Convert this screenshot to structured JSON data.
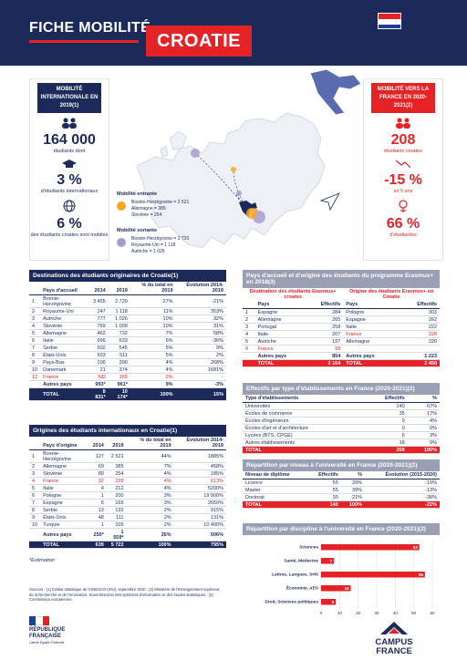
{
  "header": {
    "title": "FICHE MOBILITÉ",
    "country": "CROATIE",
    "date": "Octobre 2021",
    "flag_colors": [
      "#e52225",
      "#ffffff",
      "#1c3f94"
    ]
  },
  "left_panel": {
    "badge": "MOBILITÉ INTERNATIONALE EN 2019(1)",
    "stat1_value": "164 000",
    "stat1_label": "étudiants dont",
    "stat2_value": "3 %",
    "stat2_label": "d'étudiants internationaux",
    "stat3_value": "6 %",
    "stat3_label": "des étudiants croates sont mobiles"
  },
  "right_panel": {
    "badge": "MOBILITÉ VERS LA FRANCE EN 2020-2021(2)",
    "stat1_value": "208",
    "stat1_label": "étudiants croates",
    "stat2_value": "-15 %",
    "stat2_label": "en 5 ans",
    "stat3_value": "66 %",
    "stat3_label": "d'étudiantes"
  },
  "legend": {
    "incoming_title": "Mobilité entrante",
    "incoming_items": [
      "Bosnie-Herzégovine = 2 521",
      "Allemagne = 385",
      "Slovénie = 254"
    ],
    "outgoing_title": "Mobilité sortante",
    "outgoing_items": [
      "Bosnie-Herzégovine = 2 720",
      "Royaume-Uni = 1 118",
      "Autriche = 1 026"
    ],
    "incoming_color": "#f6a623",
    "outgoing_color": "#a89bd0"
  },
  "table1": {
    "title": "Destinations des étudiants originaires de Croatie(1)",
    "headers": [
      "",
      "Pays d'accueil",
      "2014",
      "2019",
      "% du total en 2019",
      "Évolution 2014-2019"
    ],
    "rows": [
      [
        "1",
        "Bosnie-Herzégovine",
        "3 455",
        "2 720",
        "27%",
        "-21%"
      ],
      [
        "2",
        "Royaume-Uni",
        "247",
        "1 118",
        "11%",
        "353%"
      ],
      [
        "3",
        "Autriche",
        "777",
        "1 026",
        "10%",
        "32%"
      ],
      [
        "4",
        "Slovénie",
        "769",
        "1 009",
        "10%",
        "31%"
      ],
      [
        "5",
        "Allemagne",
        "462",
        "732",
        "7%",
        "58%"
      ],
      [
        "6",
        "Italie",
        "996",
        "633",
        "6%",
        "-36%"
      ],
      [
        "7",
        "Serbie",
        "502",
        "545",
        "5%",
        "9%"
      ],
      [
        "8",
        "États-Unis",
        "503",
        "511",
        "5%",
        "2%"
      ],
      [
        "9",
        "Pays-Bas",
        "106",
        "390",
        "4%",
        "268%"
      ],
      [
        "10",
        "Danemark",
        "21",
        "374",
        "4%",
        "1681%"
      ],
      [
        "12",
        "France",
        "ND",
        "155",
        "2%",
        "-"
      ]
    ],
    "other": [
      "",
      "Autres pays",
      "993*",
      "961*",
      "9%",
      "-3%"
    ],
    "total": [
      "",
      "TOTAL",
      "8 831*",
      "10 174*",
      "100%",
      "15%"
    ]
  },
  "table2": {
    "title": "Origines des étudiants internationaux en Croatie(1)",
    "headers": [
      "",
      "Pays d'origine",
      "2014",
      "2019",
      "% du total en 2019",
      "Évolution 2014-2019"
    ],
    "rows": [
      [
        "1",
        "Bosnie-Herzégovine",
        "127",
        "2 521",
        "44%",
        "1885%"
      ],
      [
        "2",
        "Allemagne",
        "69",
        "385",
        "7%",
        "458%"
      ],
      [
        "3",
        "Slovénie",
        "89",
        "254",
        "4%",
        "185%"
      ],
      [
        "4",
        "France",
        "32",
        "228",
        "4%",
        "613%"
      ],
      [
        "5",
        "Italie",
        "4",
        "212",
        "4%",
        "5200%"
      ],
      [
        "6",
        "Pologne",
        "1",
        "200",
        "3%",
        "19 900%"
      ],
      [
        "7",
        "Espagne",
        "6",
        "165",
        "3%",
        "2650%"
      ],
      [
        "8",
        "Serbie",
        "13",
        "132",
        "2%",
        "915%"
      ],
      [
        "9",
        "États-Unis",
        "48",
        "111",
        "2%",
        "131%"
      ],
      [
        "10",
        "Turquie",
        "1",
        "105",
        "2%",
        "10 400%"
      ]
    ],
    "other": [
      "",
      "Autres pays",
      "250*",
      "1 559*",
      "26%",
      "506%"
    ],
    "total": [
      "",
      "TOTAL",
      "639",
      "5 722",
      "100%",
      "795%"
    ]
  },
  "table3": {
    "title": "Pays d'accueil et d'origine des étudiants du programme Erasmus+ en 2018(3)",
    "left_heading": "Destination des étudiants Erasmus+ croates",
    "right_heading": "Origine des étudiants Erasmus+ en Croatie",
    "headers": [
      "",
      "Pays",
      "Effectifs",
      "Pays",
      "Effectifs"
    ],
    "rows": [
      [
        "1",
        "Espagne",
        "284",
        "Pologne",
        "303"
      ],
      [
        "2",
        "Allemagne",
        "265",
        "Espagne",
        "262"
      ],
      [
        "3",
        "Portugal",
        "258",
        "Italie",
        "222"
      ],
      [
        "4",
        "Italie",
        "207",
        "France",
        "220"
      ],
      [
        "5",
        "Autriche",
        "197",
        "Allemagne",
        "220"
      ],
      [
        "9",
        "France",
        "99",
        "",
        ""
      ]
    ],
    "other": [
      "",
      "Autres pays",
      "854",
      "Autres pays",
      "1 223"
    ],
    "total": [
      "",
      "TOTAL",
      "2 164",
      "TOTAL",
      "2 450"
    ]
  },
  "table4": {
    "title": "Effectifs par type d'établissements en France (2020-2021)(2)",
    "headers": [
      "Type d'établissements",
      "Effectifs",
      "%"
    ],
    "rows": [
      [
        "Universités",
        "140",
        "67%"
      ],
      [
        "Écoles de commerce",
        "35",
        "17%"
      ],
      [
        "Écoles d'ingénieurs",
        "9",
        "4%"
      ],
      [
        "Écoles d'art et d'architecture",
        "0",
        "0%"
      ],
      [
        "Lycées (BTS, CPGE)",
        "6",
        "3%"
      ],
      [
        "Autres établissements",
        "18",
        "9%"
      ]
    ],
    "total": [
      "TOTAL",
      "208",
      "100%"
    ]
  },
  "table5": {
    "title": "Répartition par niveau à l'université en France (2020-2021)(2)",
    "headers": [
      "Niveau de diplôme",
      "Effectifs",
      "%",
      "Évolution (2015-2020)"
    ],
    "rows": [
      [
        "Licence",
        "55",
        "39%",
        "-19%"
      ],
      [
        "Master",
        "55",
        "39%",
        "-13%"
      ],
      [
        "Doctorat",
        "30",
        "21%",
        "-38%"
      ]
    ],
    "total": [
      "TOTAL",
      "140",
      "100%",
      "-22%"
    ]
  },
  "chart_data": {
    "type": "bar",
    "orientation": "horizontal",
    "title": "Répartition par discipline à l'université en France (2020-2021)(2)",
    "categories": [
      "Sciences",
      "Santé, Médecine",
      "Lettres, Langues, SHS",
      "Économie, AES",
      "Droit, Sciences politiques"
    ],
    "values": [
      53,
      7,
      56,
      16,
      8
    ],
    "xlim": [
      0,
      60
    ],
    "xticks": [
      "0",
      "10",
      "20",
      "30",
      "40",
      "50",
      "60"
    ],
    "bar_color": "#e52225",
    "grid": true
  },
  "footer": {
    "estimation": "*Estimation",
    "sources": "Sources : (1) Institut statistique de l'UNESCO (ISU), septembre 2020 ; (2) Ministère de l'Enseignement supérieur, de la Recherche et de l'Innovation, Sous-Direction des systèmes d'information et des études statistiques ; (3) Commission européenne.",
    "rf_line1": "RÉPUBLIQUE",
    "rf_line2": "FRANÇAISE",
    "rf_motto": "Liberté Égalité Fraternité",
    "cf_line1": "CAMPUS",
    "cf_line2": "FRANCE"
  }
}
